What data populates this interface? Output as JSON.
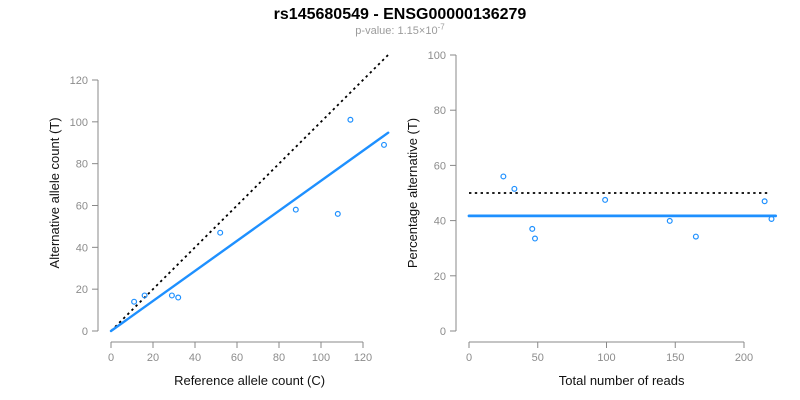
{
  "header": {
    "title": "rs145680549 - ENSG00000136279",
    "subtitle_prefix": "p-value: 1.15×10",
    "subtitle_exponent": "-7"
  },
  "colors": {
    "accent_blue": "#1E90FF",
    "line_black": "#000000",
    "axis_gray": "#888888",
    "tick_label_gray": "#8c8c8c",
    "axis_title_black": "#111111",
    "subtitle_gray": "#9b9b9b",
    "background": "#ffffff"
  },
  "chart_data": [
    {
      "type": "scatter",
      "name": "ref-vs-alt-allele-count",
      "xlabel": "Reference allele count (C)",
      "ylabel": "Alternative allele count (T)",
      "xlim": [
        0,
        132
      ],
      "ylim": [
        0,
        132
      ],
      "xticks": [
        0,
        20,
        40,
        60,
        80,
        100,
        120
      ],
      "yticks": [
        0,
        20,
        40,
        60,
        80,
        100,
        120
      ],
      "grid": false,
      "points": [
        [
          11,
          14
        ],
        [
          16,
          17
        ],
        [
          29,
          17
        ],
        [
          32,
          16
        ],
        [
          52,
          47
        ],
        [
          88,
          58
        ],
        [
          108,
          56
        ],
        [
          114,
          101
        ],
        [
          130,
          89
        ]
      ],
      "point_color": "#1E90FF",
      "lines": [
        {
          "name": "identity-line",
          "style": "dotted",
          "color": "#000000",
          "width": 1.8,
          "x": [
            0,
            132
          ],
          "y": [
            0,
            132
          ]
        },
        {
          "name": "regression-line",
          "style": "solid",
          "color": "#1E90FF",
          "width": 2.4,
          "x": [
            0,
            132
          ],
          "y": [
            0,
            94.8
          ]
        }
      ]
    },
    {
      "type": "scatter",
      "name": "reads-vs-percentage",
      "xlabel": "Total number of reads",
      "ylabel": "Percentage alternative (T)",
      "xlim": [
        0,
        222
      ],
      "ylim": [
        0,
        100
      ],
      "xticks": [
        0,
        50,
        100,
        150,
        200
      ],
      "yticks": [
        0,
        20,
        40,
        60,
        80,
        100
      ],
      "grid": false,
      "points": [
        [
          25,
          56
        ],
        [
          33,
          51.5
        ],
        [
          46,
          37
        ],
        [
          48,
          33.5
        ],
        [
          99,
          47.5
        ],
        [
          146,
          39.9
        ],
        [
          165,
          34.2
        ],
        [
          215,
          47
        ],
        [
          220,
          40.6
        ]
      ],
      "point_color": "#1E90FF",
      "lines": [
        {
          "name": "expected-50-percent-line",
          "style": "dotted",
          "color": "#000000",
          "width": 1.8,
          "x": [
            0,
            219
          ],
          "y": [
            50,
            50
          ]
        },
        {
          "name": "mean-percentage-line",
          "style": "solid",
          "color": "#1E90FF",
          "width": 2.8,
          "x": [
            0,
            223
          ],
          "y": [
            41.7,
            41.7
          ]
        }
      ]
    }
  ]
}
